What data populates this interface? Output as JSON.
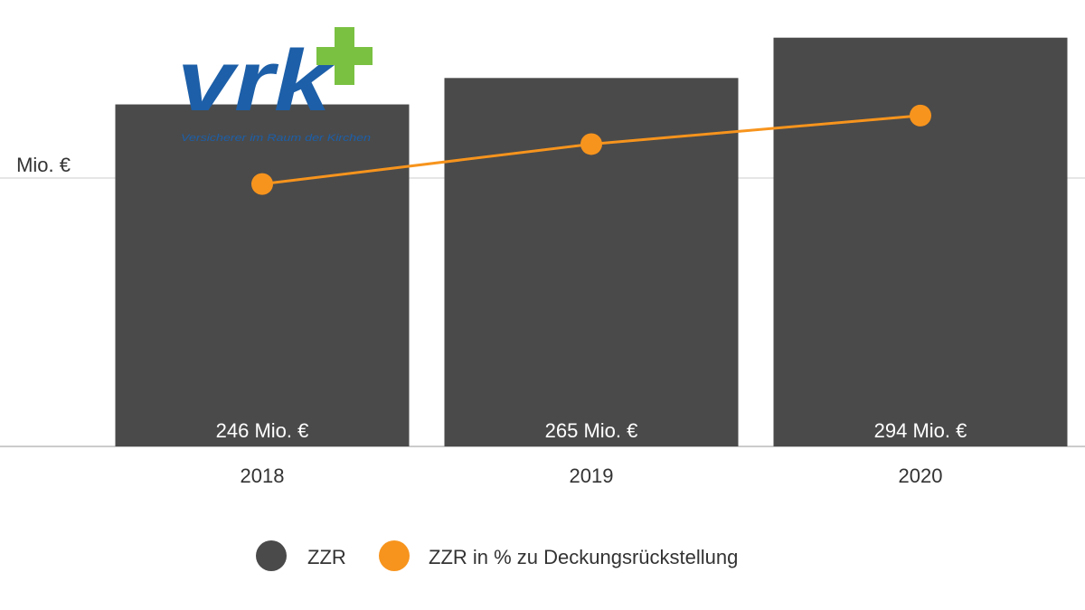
{
  "logo": {
    "wordmark": "vrk",
    "tagline": "Versicherer im Raum der Kirchen",
    "colors": {
      "text": "#1d5fa8",
      "plus": "#7ac142"
    }
  },
  "y_axis_tick": "Mio. €",
  "colors": {
    "bar": "#4a4a4a",
    "line": "#f7941d",
    "grid": "#cccccc",
    "axis": "#bbbbbb"
  },
  "legend": {
    "items": [
      {
        "label": "ZZR",
        "color": "#4a4a4a"
      },
      {
        "label": "ZZR in % zu Deckungsrückstellung",
        "color": "#f7941d"
      }
    ]
  },
  "chart_data": {
    "type": "bar",
    "categories": [
      "2018",
      "2019",
      "2020"
    ],
    "series": [
      {
        "name": "ZZR",
        "type": "bar",
        "values": [
          246,
          265,
          294
        ],
        "data_labels": [
          "246 Mio. €",
          "265 Mio. €",
          "294 Mio. €"
        ],
        "ylim": [
          0,
          350
        ]
      },
      {
        "name": "ZZR in % zu Deckungsrückstellung",
        "type": "line",
        "values": [
          4.6,
          5.3,
          5.8
        ],
        "ylim": [
          0,
          9
        ]
      }
    ],
    "title": "",
    "xlabel": "",
    "ylabel": "",
    "ylim": [
      0,
      350
    ],
    "grid": true,
    "legend_position": "bottom"
  }
}
